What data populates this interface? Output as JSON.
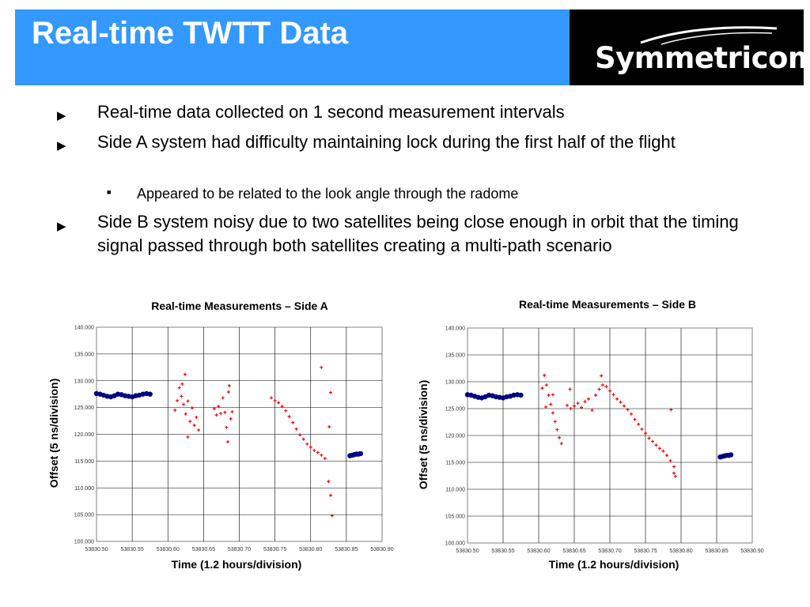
{
  "slide": {
    "title": "Real-time TWTT Data",
    "logo_text": "Symmetricom",
    "logo_mark": "®"
  },
  "bullets": [
    {
      "text": "Real-time data collected on 1 second measurement intervals"
    },
    {
      "text": "Side A system had difficulty maintaining lock during the first half of the flight",
      "sub": [
        "Appeared to be related to the look angle through the radome"
      ]
    },
    {
      "text": "Side B system noisy due to two satellites being close enough in orbit that the timing signal passed through both satellites creating a multi-path scenario"
    }
  ],
  "colors": {
    "banner": "#3399ff",
    "logo_bg": "#000000",
    "ground_series": "#000080",
    "flight_series": "#ff0000"
  },
  "chart_data": [
    {
      "type": "scatter",
      "title": "Real-time Measurements – Side A",
      "xlabel": "Time (1.2 hours/division)",
      "ylabel": "Offset (5 ns/division)",
      "xlim": [
        53830.5,
        53830.9
      ],
      "ylim": [
        100,
        140
      ],
      "x_ticks": [
        "53830.50",
        "53830.55",
        "53830.60",
        "53830.65",
        "53830.70",
        "53830.75",
        "53830.80",
        "53830.85",
        "53830.90"
      ],
      "y_ticks": [
        "140.000",
        "135.000",
        "130.000",
        "125.000",
        "120.000",
        "115.000",
        "110.000",
        "105.000",
        "100.000"
      ],
      "grid": true,
      "legend": "none",
      "series": [
        {
          "color": "#000080",
          "marker": "circle",
          "points": [
            [
              53830.5,
              127.6
            ],
            [
              53830.505,
              127.5
            ],
            [
              53830.51,
              127.3
            ],
            [
              53830.515,
              127.1
            ],
            [
              53830.52,
              127.0
            ],
            [
              53830.525,
              127.2
            ],
            [
              53830.53,
              127.5
            ],
            [
              53830.535,
              127.4
            ],
            [
              53830.54,
              127.2
            ],
            [
              53830.545,
              127.1
            ],
            [
              53830.55,
              127.0
            ],
            [
              53830.555,
              127.2
            ],
            [
              53830.56,
              127.3
            ],
            [
              53830.565,
              127.5
            ],
            [
              53830.57,
              127.6
            ],
            [
              53830.575,
              127.5
            ],
            [
              53830.855,
              116.0
            ],
            [
              53830.858,
              116.1
            ],
            [
              53830.861,
              116.2
            ],
            [
              53830.864,
              116.3
            ],
            [
              53830.867,
              116.3
            ],
            [
              53830.87,
              116.4
            ]
          ]
        },
        {
          "color": "#ff0000",
          "marker": "plus",
          "points": [
            [
              53830.61,
              124.5
            ],
            [
              53830.613,
              126.3
            ],
            [
              53830.616,
              128.7
            ],
            [
              53830.619,
              127.1
            ],
            [
              53830.622,
              125.6
            ],
            [
              53830.625,
              123.8
            ],
            [
              53830.628,
              126.2
            ],
            [
              53830.631,
              122.4
            ],
            [
              53830.634,
              124.9
            ],
            [
              53830.637,
              121.7
            ],
            [
              53830.64,
              123.2
            ],
            [
              53830.643,
              120.8
            ],
            [
              53830.62,
              129.4
            ],
            [
              53830.624,
              131.2
            ],
            [
              53830.628,
              119.5
            ],
            [
              53830.665,
              124.8
            ],
            [
              53830.668,
              123.6
            ],
            [
              53830.671,
              125.2
            ],
            [
              53830.674,
              123.9
            ],
            [
              53830.677,
              126.8
            ],
            [
              53830.68,
              124.1
            ],
            [
              53830.682,
              121.3
            ],
            [
              53830.684,
              118.6
            ],
            [
              53830.685,
              127.9
            ],
            [
              53830.686,
              129.1
            ],
            [
              53830.688,
              122.9
            ],
            [
              53830.69,
              124.2
            ],
            [
              53830.745,
              126.8
            ],
            [
              53830.75,
              126.3
            ],
            [
              53830.755,
              125.9
            ],
            [
              53830.76,
              125.2
            ],
            [
              53830.765,
              124.4
            ],
            [
              53830.77,
              123.3
            ],
            [
              53830.775,
              122.2
            ],
            [
              53830.78,
              121.0
            ],
            [
              53830.785,
              119.9
            ],
            [
              53830.79,
              119.1
            ],
            [
              53830.795,
              118.2
            ],
            [
              53830.8,
              117.6
            ],
            [
              53830.805,
              117.0
            ],
            [
              53830.81,
              116.6
            ],
            [
              53830.815,
              116.1
            ],
            [
              53830.82,
              115.5
            ],
            [
              53830.825,
              111.2
            ],
            [
              53830.828,
              108.6
            ],
            [
              53830.83,
              104.8
            ],
            [
              53830.815,
              132.5
            ],
            [
              53830.828,
              127.8
            ],
            [
              53830.826,
              121.4
            ]
          ]
        }
      ]
    },
    {
      "type": "scatter",
      "title": "Real-time Measurements – Side B",
      "xlabel": "Time (1.2 hours/division)",
      "ylabel": "Offset (5 ns/division)",
      "xlim": [
        53830.5,
        53830.9
      ],
      "ylim": [
        100,
        140
      ],
      "x_ticks": [
        "53830.50",
        "53830.55",
        "53830.60",
        "53830.65",
        "53830.70",
        "53830.75",
        "53830.80",
        "53830.85",
        "53830.90"
      ],
      "y_ticks": [
        "140.000",
        "135.000",
        "130.000",
        "125.000",
        "120.000",
        "115.000",
        "110.000",
        "105.000",
        "100.000"
      ],
      "grid": true,
      "legend": "none",
      "series": [
        {
          "color": "#000080",
          "marker": "circle",
          "points": [
            [
              53830.5,
              127.6
            ],
            [
              53830.505,
              127.5
            ],
            [
              53830.51,
              127.3
            ],
            [
              53830.515,
              127.1
            ],
            [
              53830.52,
              127.0
            ],
            [
              53830.525,
              127.2
            ],
            [
              53830.53,
              127.5
            ],
            [
              53830.535,
              127.4
            ],
            [
              53830.54,
              127.2
            ],
            [
              53830.545,
              127.1
            ],
            [
              53830.55,
              127.0
            ],
            [
              53830.555,
              127.2
            ],
            [
              53830.56,
              127.3
            ],
            [
              53830.565,
              127.5
            ],
            [
              53830.57,
              127.6
            ],
            [
              53830.575,
              127.5
            ],
            [
              53830.855,
              116.0
            ],
            [
              53830.858,
              116.1
            ],
            [
              53830.861,
              116.2
            ],
            [
              53830.864,
              116.3
            ],
            [
              53830.867,
              116.3
            ],
            [
              53830.87,
              116.4
            ]
          ]
        },
        {
          "color": "#ff0000",
          "marker": "plus",
          "points": [
            [
              53830.605,
              128.8
            ],
            [
              53830.608,
              131.2
            ],
            [
              53830.611,
              129.4
            ],
            [
              53830.614,
              127.5
            ],
            [
              53830.617,
              125.8
            ],
            [
              53830.62,
              124.2
            ],
            [
              53830.623,
              122.6
            ],
            [
              53830.626,
              121.1
            ],
            [
              53830.629,
              119.6
            ],
            [
              53830.632,
              118.5
            ],
            [
              53830.61,
              125.3
            ],
            [
              53830.62,
              127.6
            ],
            [
              53830.64,
              125.6
            ],
            [
              53830.645,
              125.0
            ],
            [
              53830.65,
              125.5
            ],
            [
              53830.655,
              126.0
            ],
            [
              53830.66,
              125.2
            ],
            [
              53830.665,
              126.3
            ],
            [
              53830.67,
              126.8
            ],
            [
              53830.675,
              124.7
            ],
            [
              53830.68,
              127.5
            ],
            [
              53830.685,
              128.6
            ],
            [
              53830.69,
              129.4
            ],
            [
              53830.695,
              129.1
            ],
            [
              53830.7,
              128.3
            ],
            [
              53830.705,
              127.6
            ],
            [
              53830.71,
              126.8
            ],
            [
              53830.715,
              126.2
            ],
            [
              53830.72,
              125.5
            ],
            [
              53830.725,
              124.8
            ],
            [
              53830.73,
              124.0
            ],
            [
              53830.735,
              123.0
            ],
            [
              53830.74,
              122.1
            ],
            [
              53830.745,
              121.2
            ],
            [
              53830.75,
              120.4
            ],
            [
              53830.755,
              119.5
            ],
            [
              53830.76,
              118.9
            ],
            [
              53830.765,
              118.2
            ],
            [
              53830.77,
              117.6
            ],
            [
              53830.775,
              117.1
            ],
            [
              53830.78,
              116.3
            ],
            [
              53830.785,
              115.3
            ],
            [
              53830.79,
              114.2
            ],
            [
              53830.792,
              112.4
            ],
            [
              53830.644,
              128.6
            ],
            [
              53830.688,
              131.1
            ],
            [
              53830.786,
              124.8
            ],
            [
              53830.79,
              113.0
            ]
          ]
        }
      ]
    }
  ]
}
